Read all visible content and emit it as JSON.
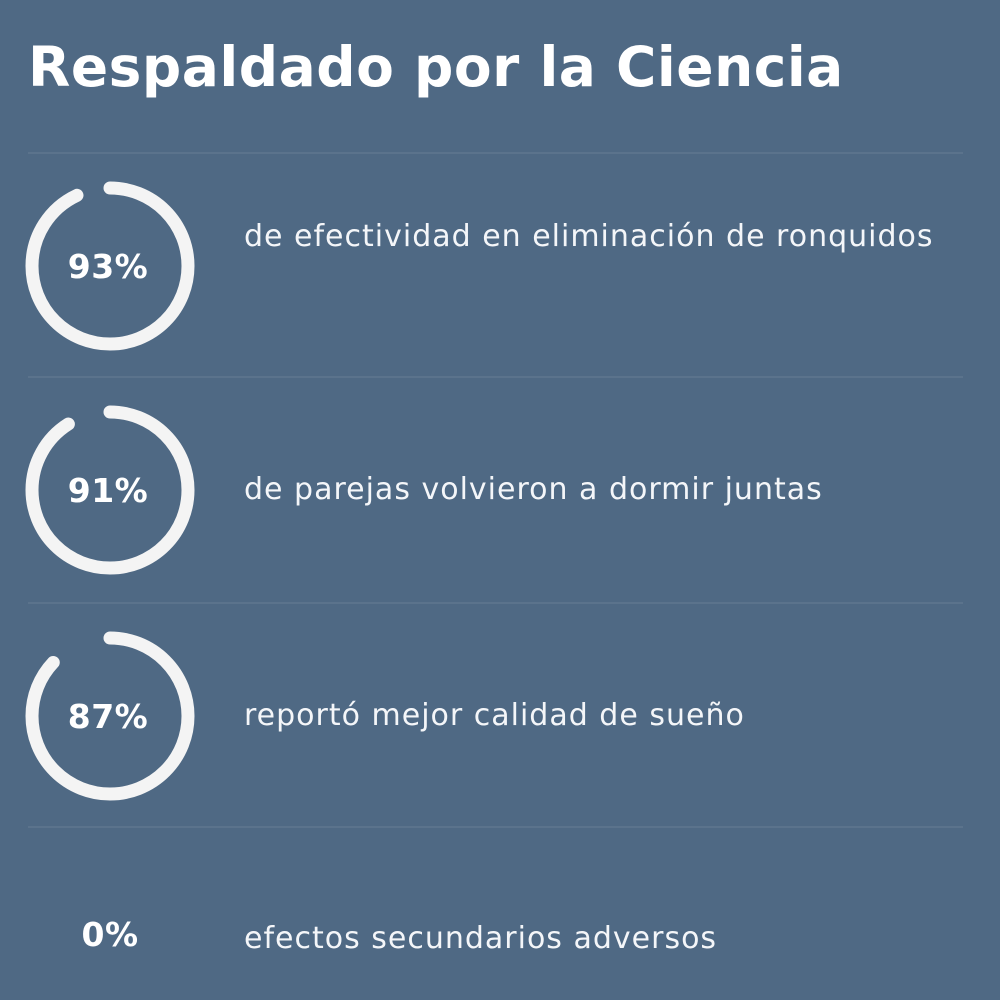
{
  "title": "Respaldado por la Ciencia",
  "accent_color": "#f4f4f4",
  "background_color": "#4f6984",
  "stats": [
    {
      "value": "93%",
      "fraction": 0.93,
      "text": "de efectividad en eliminación de ronquidos"
    },
    {
      "value": "91%",
      "fraction": 0.91,
      "text": "de parejas volvieron a dormir juntas"
    },
    {
      "value": "87%",
      "fraction": 0.87,
      "text": "reportó mejor calidad de sueño"
    },
    {
      "value": "0%",
      "fraction": 0,
      "text": "efectos secundarios adversos"
    }
  ]
}
